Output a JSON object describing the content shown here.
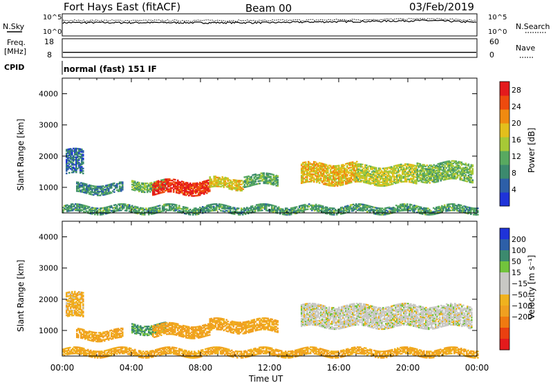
{
  "header": {
    "radar": "Fort Hays East (fitACF)",
    "beam": "Beam 00",
    "date": "03/Feb/2019"
  },
  "noise_panel": {
    "left_label": "N.Sky",
    "right_label": "N.Search",
    "left_ticks": [
      "10^5",
      "10^0"
    ],
    "right_ticks": [
      "10^5",
      "10^0"
    ]
  },
  "freq_panel": {
    "left_label_1": "Freq.",
    "left_label_2": "[MHz]",
    "right_label": "Nave",
    "left_ticks": [
      "18",
      "8"
    ],
    "right_ticks": [
      "60",
      "0"
    ]
  },
  "cpid": {
    "label": "CPID",
    "value": "normal (fast) 151 IF"
  },
  "axes": {
    "ylabel": "Slant Range [km]",
    "xlabel": "Time UT",
    "y_ticks": [
      "1000",
      "2000",
      "3000",
      "4000"
    ],
    "x_ticks": [
      "00:00",
      "04:00",
      "08:00",
      "12:00",
      "16:00",
      "20:00",
      "00:00"
    ]
  },
  "power_colorbar": {
    "label": "Power [dB]",
    "ticks": [
      "4",
      "8",
      "12",
      "16",
      "20",
      "24",
      "28"
    ]
  },
  "velocity_colorbar": {
    "label": "Velocity [m s⁻¹]",
    "ticks": [
      "200",
      "100",
      "50",
      "15",
      "−15",
      "−50",
      "−100",
      "−200"
    ]
  },
  "chart_data": [
    {
      "type": "line",
      "title": "N.Sky / N.Search",
      "x_range": [
        0,
        24
      ],
      "y_scale": "log",
      "series": [
        {
          "name": "N.Sky",
          "x": [
            0,
            3,
            6,
            9,
            12,
            15,
            18,
            21,
            24
          ],
          "values": [
            1000,
            1000,
            1000,
            1000,
            1000,
            1500,
            2000,
            3000,
            1000
          ]
        },
        {
          "name": "N.Search",
          "x": [
            0,
            3,
            6,
            9,
            12,
            15,
            18,
            21,
            24
          ],
          "values": [
            3000,
            3000,
            3000,
            3000,
            3000,
            4000,
            5000,
            7000,
            3000
          ]
        }
      ]
    },
    {
      "type": "line",
      "title": "Freq. / Nave",
      "x_range": [
        0,
        24
      ],
      "series": [
        {
          "name": "Freq. [MHz]",
          "x": [
            0,
            24
          ],
          "values": [
            10.7,
            10.7
          ],
          "ylim": [
            8,
            18
          ]
        },
        {
          "name": "Nave",
          "x": [
            0,
            24
          ],
          "values": [
            0,
            0
          ],
          "ylim": [
            0,
            60
          ]
        }
      ]
    },
    {
      "type": "heatmap",
      "title": "Power [dB]",
      "x_range": [
        0,
        24
      ],
      "ylim": [
        180,
        4500
      ],
      "color_range": [
        0,
        30
      ],
      "regions": [
        {
          "t_start": 0.2,
          "t_end": 1.2,
          "r_low": 1400,
          "r_high": 2200,
          "value": 6
        },
        {
          "t_start": 0.8,
          "t_end": 3.5,
          "r_low": 800,
          "r_high": 1100,
          "value": 8
        },
        {
          "t_start": 4.0,
          "t_end": 6.0,
          "r_low": 900,
          "r_high": 1200,
          "value": 12
        },
        {
          "t_start": 5.2,
          "t_end": 8.5,
          "r_low": 780,
          "r_high": 1200,
          "value": 27
        },
        {
          "t_start": 8.5,
          "t_end": 10.5,
          "r_low": 950,
          "r_high": 1300,
          "value": 18
        },
        {
          "t_start": 10.5,
          "t_end": 12.5,
          "r_low": 1050,
          "r_high": 1380,
          "value": 11
        },
        {
          "t_start": 13.8,
          "t_end": 17.0,
          "r_low": 1100,
          "r_high": 1750,
          "value": 19
        },
        {
          "t_start": 17.0,
          "t_end": 20.5,
          "r_low": 1100,
          "r_high": 1700,
          "value": 16
        },
        {
          "t_start": 20.5,
          "t_end": 23.7,
          "r_low": 1200,
          "r_high": 1800,
          "value": 13
        },
        {
          "t_start": 0.0,
          "t_end": 24.0,
          "r_low": 180,
          "r_high": 420,
          "value": 10
        }
      ]
    },
    {
      "type": "heatmap",
      "title": "Velocity [m s⁻¹]",
      "x_range": [
        0,
        24
      ],
      "ylim": [
        180,
        4500
      ],
      "color_range": [
        -250,
        250
      ],
      "regions": [
        {
          "t_start": 0.2,
          "t_end": 1.2,
          "r_low": 1400,
          "r_high": 2200,
          "value": -30
        },
        {
          "t_start": 0.8,
          "t_end": 3.5,
          "r_low": 700,
          "r_high": 1000,
          "value": -40
        },
        {
          "t_start": 4.0,
          "t_end": 6.0,
          "r_low": 900,
          "r_high": 1200,
          "value": 40
        },
        {
          "t_start": 5.2,
          "t_end": 8.5,
          "r_low": 800,
          "r_high": 1200,
          "value": -45
        },
        {
          "t_start": 8.5,
          "t_end": 12.5,
          "r_low": 950,
          "r_high": 1350,
          "value": -40
        },
        {
          "t_start": 13.8,
          "t_end": 23.7,
          "r_low": 1100,
          "r_high": 1800,
          "value": 0
        },
        {
          "t_start": 0.0,
          "t_end": 24.0,
          "r_low": 180,
          "r_high": 420,
          "value": -35
        }
      ]
    }
  ],
  "colors": {
    "power_scale": [
      "#1f33d9",
      "#2d5fa8",
      "#3c8a6e",
      "#58a960",
      "#a7c936",
      "#e3bf1c",
      "#f08a10",
      "#ee4a0e",
      "#e41a1c"
    ],
    "velocity_positive": [
      "#1f33d9",
      "#2d5fa8",
      "#3c8a6e",
      "#72c33c"
    ],
    "velocity_near_zero": "#c8c8c4",
    "velocity_negative": [
      "#f0b21e",
      "#f0a020",
      "#f07a10",
      "#ea4010",
      "#e41a1c"
    ]
  }
}
